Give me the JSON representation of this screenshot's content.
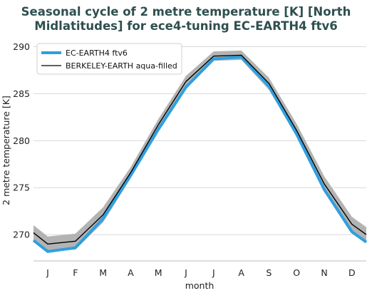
{
  "chart_data": {
    "type": "line",
    "title_lines": [
      "Seasonal cycle of 2 metre temperature [K] [North",
      "Midlatitudes] for ece4-tuning EC-EARTH4 ftv6"
    ],
    "xlabel": "month",
    "ylabel": "2 metre temperature [K]",
    "categories": [
      "J",
      "F",
      "M",
      "A",
      "M",
      "J",
      "J",
      "A",
      "S",
      "O",
      "N",
      "D"
    ],
    "ylim": [
      267.2,
      290.8
    ],
    "yticks": [
      270,
      275,
      280,
      285,
      290
    ],
    "grid": "horizontal",
    "legend_position": "top-left",
    "series": [
      {
        "name": "EC-EARTH4 ftv6",
        "color": "#2e9fdf",
        "values": [
          268.2,
          268.6,
          271.7,
          276.3,
          281.2,
          285.7,
          288.7,
          288.9,
          285.8,
          280.7,
          274.8,
          270.3
        ]
      },
      {
        "name": "BERKELEY-EARTH aqua-filled",
        "color": "#000000",
        "values": [
          269.0,
          269.3,
          272.1,
          276.6,
          281.7,
          286.3,
          289.0,
          289.1,
          286.1,
          281.1,
          275.4,
          271.1
        ],
        "band_lower": [
          268.2,
          268.4,
          271.3,
          276.0,
          281.1,
          285.7,
          288.5,
          288.6,
          285.4,
          280.4,
          274.7,
          270.3
        ],
        "band_upper": [
          269.8,
          270.1,
          272.9,
          277.2,
          282.3,
          286.9,
          289.5,
          289.6,
          286.7,
          281.8,
          276.2,
          271.9
        ],
        "band_color": "#b3b3b3"
      }
    ],
    "edge_values": {
      "series_0_left": 269.4,
      "series_0_right": 269.2,
      "series_1_left": 270.2,
      "series_1_right": 270.0,
      "band_lower_left": 269.5,
      "band_lower_right": 269.2,
      "band_upper_left": 271.0,
      "band_upper_right": 270.8
    }
  }
}
